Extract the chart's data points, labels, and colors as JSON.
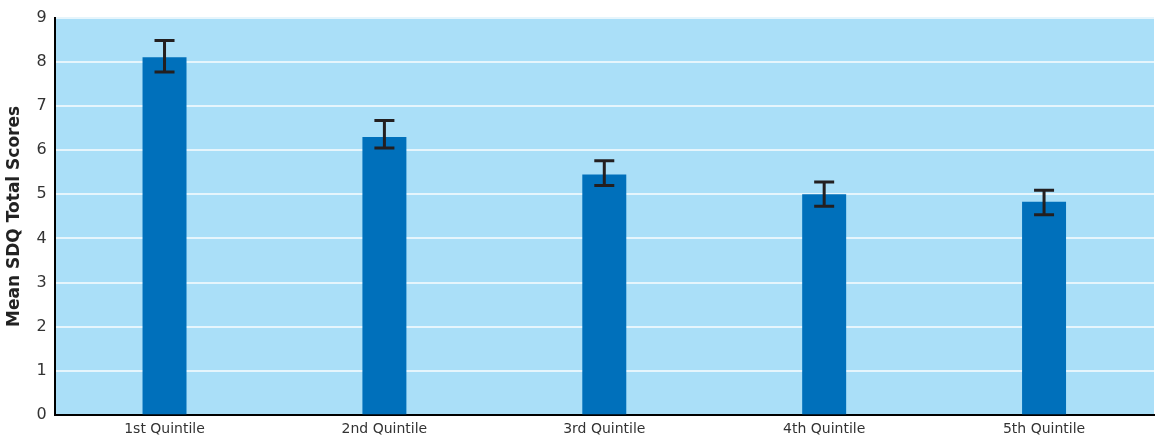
{
  "chart_data": {
    "type": "bar",
    "ylabel": "Mean SDQ Total Scores",
    "categories": [
      "1st Quintile",
      "2nd Quintile",
      "3rd Quintile",
      "4th Quintile",
      "5th Quintile"
    ],
    "values": [
      8.1,
      6.3,
      5.45,
      5.0,
      4.83
    ],
    "errors": [
      [
        7.77,
        8.48
      ],
      [
        6.05,
        6.67
      ],
      [
        5.2,
        5.76
      ],
      [
        4.73,
        5.28
      ],
      [
        4.54,
        5.09
      ]
    ],
    "color": "#0070bb",
    "ylim": [
      0,
      9
    ],
    "yticks": [
      0,
      1,
      2,
      3,
      4,
      5,
      6,
      7,
      8,
      9
    ],
    "grid": "y"
  }
}
